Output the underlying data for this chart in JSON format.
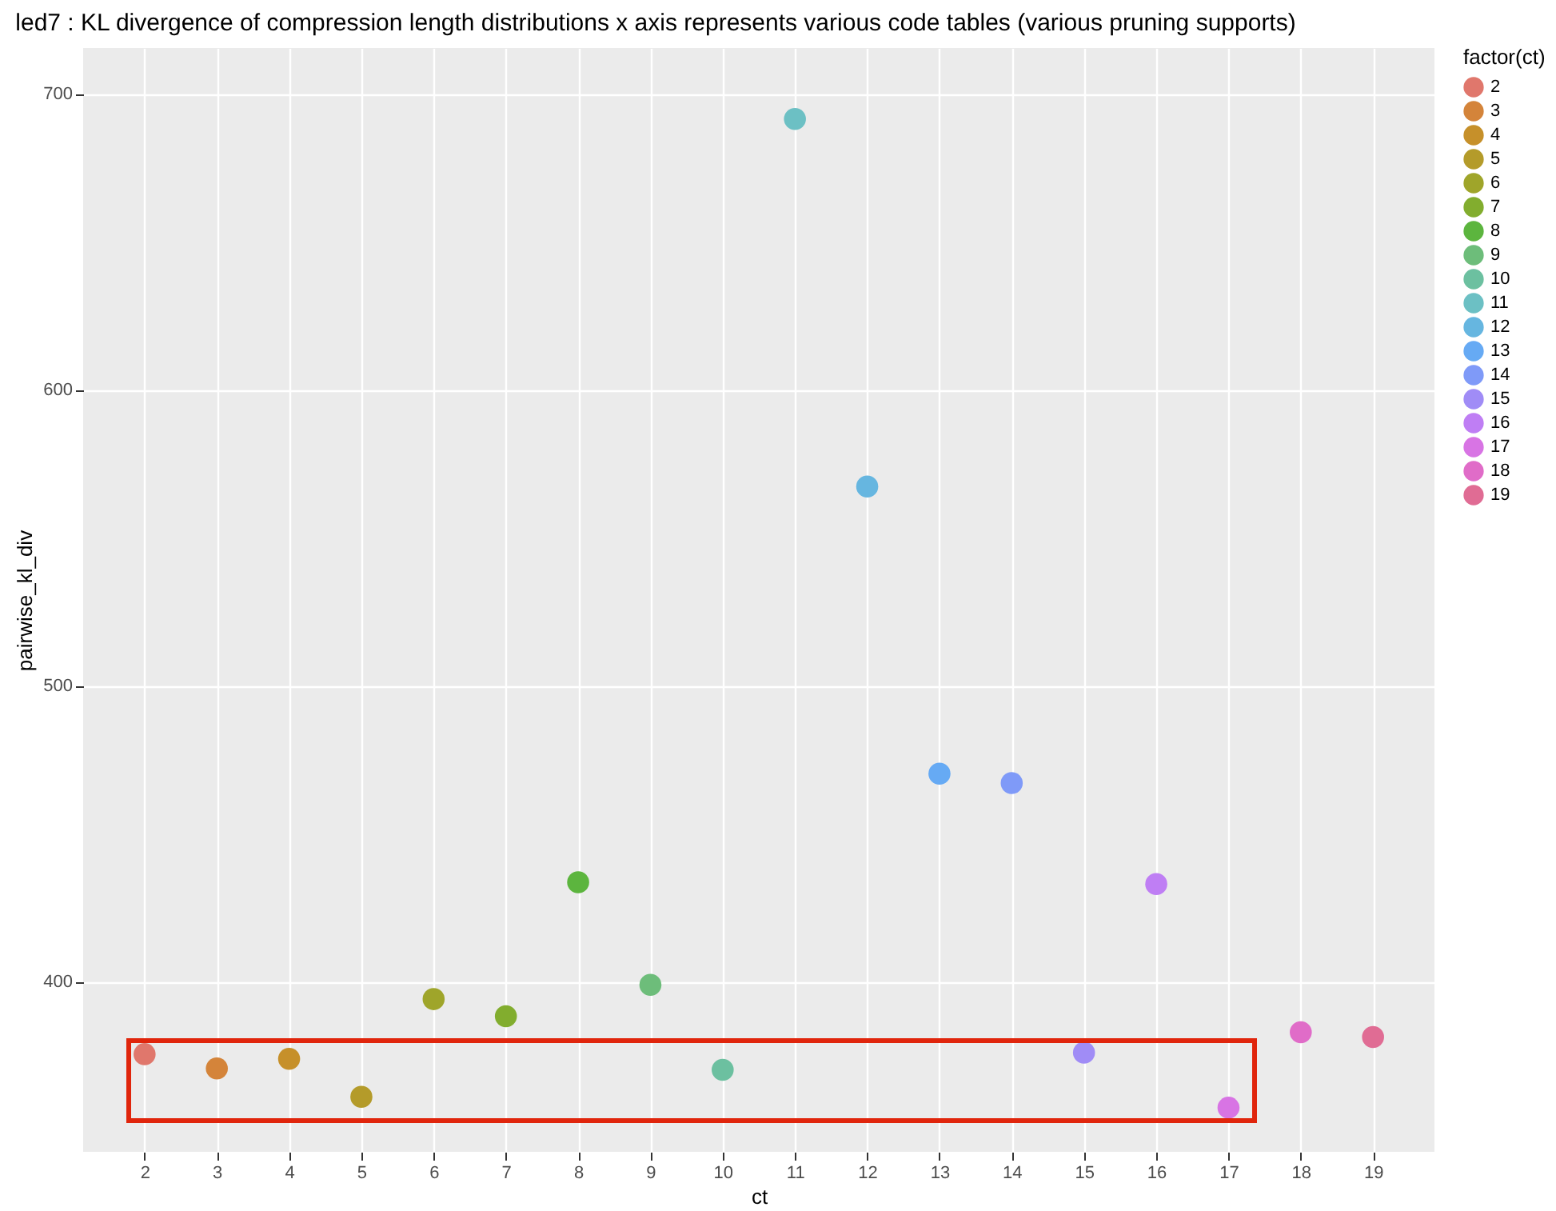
{
  "chart_data": {
    "type": "scatter",
    "title": "led7 : KL divergence of compression length distributions x axis represents various code tables (various pruning supports)",
    "xlabel": "ct",
    "ylabel": "pairwise_kl_div",
    "legend_title": "factor(ct)",
    "xlim": [
      1.15,
      19.85
    ],
    "xticks": [
      2,
      3,
      4,
      5,
      6,
      7,
      8,
      9,
      10,
      11,
      12,
      13,
      14,
      15,
      16,
      17,
      18,
      19
    ],
    "ylim": [
      342.5,
      715.5
    ],
    "yticks": [
      400,
      500,
      600,
      700
    ],
    "grid": true,
    "legend": "right",
    "marker": "circle",
    "series": [
      {
        "name": "2",
        "color": "#e0776c",
        "x": [
          2
        ],
        "values": [
          375.5
        ]
      },
      {
        "name": "3",
        "color": "#d4843a",
        "x": [
          3
        ],
        "values": [
          370.7
        ]
      },
      {
        "name": "4",
        "color": "#c6902a",
        "x": [
          4
        ],
        "values": [
          373.9
        ]
      },
      {
        "name": "5",
        "color": "#b49b2a",
        "x": [
          5
        ],
        "values": [
          361.1
        ]
      },
      {
        "name": "6",
        "color": "#9fa52a",
        "x": [
          6
        ],
        "values": [
          394.1
        ]
      },
      {
        "name": "7",
        "color": "#82ad2e",
        "x": [
          7
        ],
        "values": [
          388.3
        ]
      },
      {
        "name": "8",
        "color": "#5cb53e",
        "x": [
          8
        ],
        "values": [
          433.6
        ]
      },
      {
        "name": "9",
        "color": "#6dbd7a",
        "x": [
          9
        ],
        "values": [
          398.9
        ]
      },
      {
        "name": "10",
        "color": "#6cc0a0",
        "x": [
          10
        ],
        "values": [
          370.2
        ]
      },
      {
        "name": "11",
        "color": "#6cc0c4",
        "x": [
          11
        ],
        "values": [
          691.5
        ]
      },
      {
        "name": "12",
        "color": "#66b6e0",
        "x": [
          12
        ],
        "values": [
          567.3
        ]
      },
      {
        "name": "13",
        "color": "#66aaf4",
        "x": [
          13
        ],
        "values": [
          470.3
        ]
      },
      {
        "name": "14",
        "color": "#7f9af8",
        "x": [
          14
        ],
        "values": [
          467.1
        ]
      },
      {
        "name": "15",
        "color": "#a08cf6",
        "x": [
          15
        ],
        "values": [
          376.0
        ]
      },
      {
        "name": "16",
        "color": "#bf7ef4",
        "x": [
          16
        ],
        "values": [
          433.0
        ]
      },
      {
        "name": "17",
        "color": "#d874e4",
        "x": [
          17
        ],
        "values": [
          357.4
        ]
      },
      {
        "name": "18",
        "color": "#e06cc8",
        "x": [
          18
        ],
        "values": [
          382.9
        ]
      },
      {
        "name": "19",
        "color": "#e06c94",
        "x": [
          19
        ],
        "values": [
          381.3
        ]
      }
    ]
  }
}
